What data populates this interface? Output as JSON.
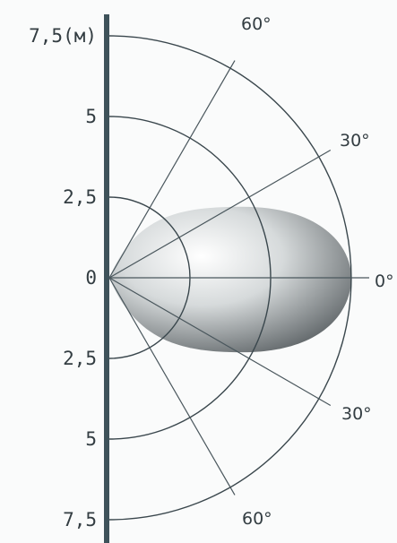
{
  "chart_data": {
    "type": "polar-beam-pattern",
    "radial_unit": "(м)",
    "radial_max": 7.5,
    "distance_labels": [
      {
        "text": "7,5(м)",
        "value": 7.5,
        "side": "upper"
      },
      {
        "text": "5",
        "value": 5,
        "side": "upper"
      },
      {
        "text": "2,5",
        "value": 2.5,
        "side": "upper"
      },
      {
        "text": "0",
        "value": 0,
        "side": "center"
      },
      {
        "text": "2,5",
        "value": 2.5,
        "side": "lower"
      },
      {
        "text": "5",
        "value": 5,
        "side": "lower"
      },
      {
        "text": "7,5",
        "value": 7.5,
        "side": "lower"
      }
    ],
    "rings": [
      2.5,
      5,
      7.5
    ],
    "angle_lines": [
      {
        "angle": 60,
        "label": "60°"
      },
      {
        "angle": 30,
        "label": "30°"
      },
      {
        "angle": 0,
        "label": "0°"
      },
      {
        "angle": -30,
        "label": "30°"
      },
      {
        "angle": -60,
        "label": "60°"
      }
    ],
    "beam": {
      "range": 7.5,
      "half_width": 2.2,
      "shading": [
        "#ffffff",
        "#d6dadb",
        "#5e6467"
      ]
    },
    "colors": {
      "wall": "#3e525a",
      "lines": "#3a474d",
      "text": "#333d42"
    }
  }
}
